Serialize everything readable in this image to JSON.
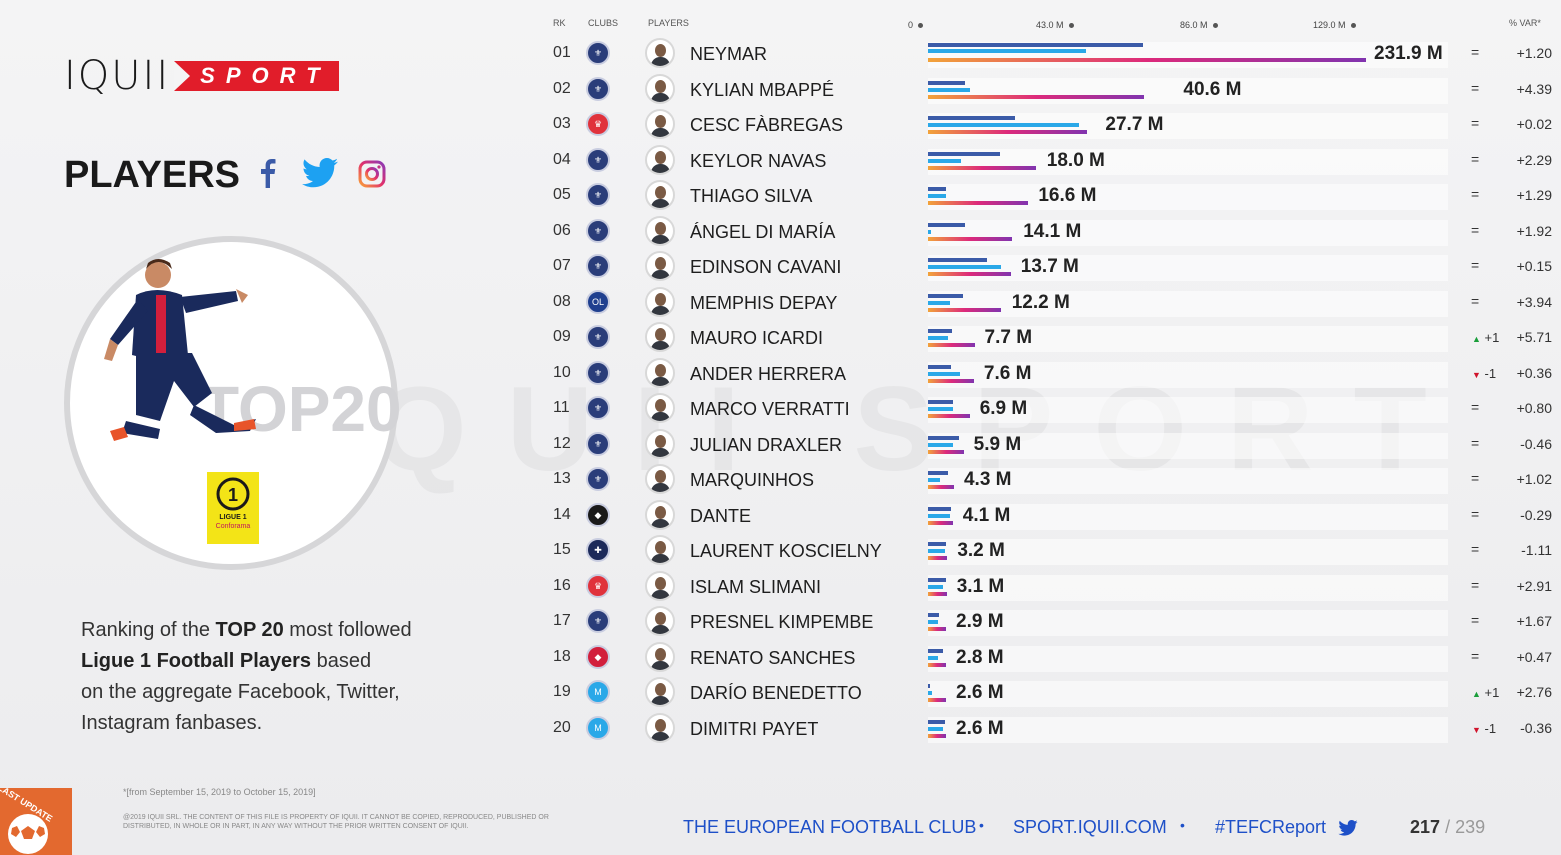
{
  "brand": {
    "logo_main": "IQUII",
    "logo_accent": "SPORT"
  },
  "title": "PLAYERS",
  "social_icons": [
    "facebook-icon",
    "twitter-icon",
    "instagram-icon"
  ],
  "hero": {
    "badge_text": "TOP20",
    "league_logo": "ligue-1-conforama-logo",
    "league_text_1": "LIGUE 1",
    "league_text_2": "Conforama"
  },
  "description": {
    "line1_pre": "Ranking of the ",
    "line1_bold": "TOP 20",
    "line1_post": " most followed",
    "line2_bold": "Ligue 1 Football Players",
    "line2_post": " based",
    "line3": "on the aggregate Facebook, Twitter,",
    "line4": "Instagram fanbases."
  },
  "footnote": "*[from September 15, 2019 to October 15, 2019]",
  "copyright": "@2019 IQUII SRL. THE CONTENT OF THIS FILE IS PROPERTY OF IQUII. IT CANNOT BE COPIED, REPRODUCED, PUBLISHED OR DISTRIBUTED, IN WHOLE OR IN PART, IN ANY WAY WITHOUT THE PRIOR WRITTEN CONSENT OF IQUII.",
  "corner_badge": "LAST UPDATE",
  "headers": {
    "rk": "RK",
    "clubs": "CLUBS",
    "players": "PLAYERS",
    "var": "% VAR*"
  },
  "scale_labels": [
    "0",
    "43.0 M",
    "86.0 M",
    "129.0 M"
  ],
  "colors": {
    "facebook": "#3b5ba8",
    "twitter": "#2aa8e8",
    "instagram_start": "#f2a33a",
    "instagram_end": "#8134af",
    "accent": "#e11d2a",
    "footer": "#1e50c8"
  },
  "chart_data": {
    "type": "bar",
    "title": "PLAYERS",
    "xlim": [
      0,
      231.9
    ],
    "x_ticks": [
      "0",
      "43.0 M",
      "86.0 M",
      "129.0 M"
    ],
    "series_names": [
      "Facebook",
      "Twitter",
      "Instagram"
    ],
    "rows": [
      {
        "rank": "01",
        "club": "psg-crest",
        "player": "NEYMAR",
        "total": 231.9,
        "total_label": "231.9 M",
        "fb": 0.49,
        "tw": 0.36,
        "ig": 1.0,
        "pos_change": "=",
        "var": "+1.20"
      },
      {
        "rank": "02",
        "club": "psg-crest",
        "player": "KYLIAN MBAPPÉ",
        "total": 40.6,
        "total_label": "40.6 M",
        "fb": 0.15,
        "tw": 0.17,
        "ig": 0.88,
        "pos_change": "=",
        "var": "+4.39"
      },
      {
        "rank": "03",
        "club": "monaco-crest",
        "player": "CESC FÀBREGAS",
        "total": 27.7,
        "total_label": "27.7 M",
        "fb": 0.52,
        "tw": 0.9,
        "ig": 0.95,
        "pos_change": "=",
        "var": "+0.02"
      },
      {
        "rank": "04",
        "club": "psg-crest",
        "player": "KEYLOR NAVAS",
        "total": 18.0,
        "total_label": "18.0 M",
        "fb": 0.66,
        "tw": 0.3,
        "ig": 0.99,
        "pos_change": "=",
        "var": "+2.29"
      },
      {
        "rank": "05",
        "club": "psg-crest",
        "player": "THIAGO SILVA",
        "total": 16.6,
        "total_label": "16.6 M",
        "fb": 0.18,
        "tw": 0.18,
        "ig": 1.0,
        "pos_change": "=",
        "var": "+1.29"
      },
      {
        "rank": "06",
        "club": "psg-crest",
        "player": "ÁNGEL DI MARÍA",
        "total": 14.1,
        "total_label": "14.1 M",
        "fb": 0.44,
        "tw": 0.04,
        "ig": 0.98,
        "pos_change": "=",
        "var": "+1.92"
      },
      {
        "rank": "07",
        "club": "psg-crest",
        "player": "EDINSON CAVANI",
        "total": 13.7,
        "total_label": "13.7 M",
        "fb": 0.71,
        "tw": 0.88,
        "ig": 1.0,
        "pos_change": "=",
        "var": "+0.15"
      },
      {
        "rank": "08",
        "club": "lyon-crest",
        "player": "MEMPHIS DEPAY",
        "total": 12.2,
        "total_label": "12.2 M",
        "fb": 0.47,
        "tw": 0.3,
        "ig": 0.99,
        "pos_change": "=",
        "var": "+3.94"
      },
      {
        "rank": "09",
        "club": "psg-crest",
        "player": "MAURO ICARDI",
        "total": 7.7,
        "total_label": "7.7 M",
        "fb": 0.51,
        "tw": 0.44,
        "ig": 1.0,
        "pos_change": "+1",
        "pos_dir": "up",
        "var": "+5.71"
      },
      {
        "rank": "10",
        "club": "psg-crest",
        "player": "ANDER HERRERA",
        "total": 7.6,
        "total_label": "7.6 M",
        "fb": 0.49,
        "tw": 0.69,
        "ig": 1.0,
        "pos_change": "-1",
        "pos_dir": "down",
        "var": "+0.36"
      },
      {
        "rank": "11",
        "club": "psg-crest",
        "player": "MARCO VERRATTI",
        "total": 6.9,
        "total_label": "6.9 M",
        "fb": 0.61,
        "tw": 0.61,
        "ig": 1.0,
        "pos_change": "=",
        "var": "+0.80"
      },
      {
        "rank": "12",
        "club": "psg-crest",
        "player": "JULIAN DRAXLER",
        "total": 5.9,
        "total_label": "5.9 M",
        "fb": 0.86,
        "tw": 0.71,
        "ig": 1.0,
        "pos_change": "=",
        "var": "-0.46"
      },
      {
        "rank": "13",
        "club": "psg-crest",
        "player": "MARQUINHOS",
        "total": 4.3,
        "total_label": "4.3 M",
        "fb": 0.76,
        "tw": 0.47,
        "ig": 1.0,
        "pos_change": "=",
        "var": "+1.02"
      },
      {
        "rank": "14",
        "club": "nice-crest",
        "player": "DANTE",
        "total": 4.1,
        "total_label": "4.1 M",
        "fb": 0.94,
        "tw": 0.88,
        "ig": 1.0,
        "pos_change": "=",
        "var": "-0.29"
      },
      {
        "rank": "15",
        "club": "bordeaux-crest",
        "player": "LAURENT KOSCIELNY",
        "total": 3.2,
        "total_label": "3.2 M",
        "fb": 0.93,
        "tw": 0.86,
        "ig": 1.0,
        "pos_change": "=",
        "var": "-1.11"
      },
      {
        "rank": "16",
        "club": "monaco-crest",
        "player": "ISLAM SLIMANI",
        "total": 3.1,
        "total_label": "3.1 M",
        "fb": 0.94,
        "tw": 0.81,
        "ig": 1.0,
        "pos_change": "=",
        "var": "+2.91"
      },
      {
        "rank": "17",
        "club": "psg-crest",
        "player": "PRESNEL KIMPEMBE",
        "total": 2.9,
        "total_label": "2.9 M",
        "fb": 0.62,
        "tw": 0.54,
        "ig": 1.0,
        "pos_change": "=",
        "var": "+1.67"
      },
      {
        "rank": "18",
        "club": "lille-crest",
        "player": "RENATO SANCHES",
        "total": 2.8,
        "total_label": "2.8 M",
        "fb": 0.81,
        "tw": 0.56,
        "ig": 1.0,
        "pos_change": "=",
        "var": "+0.47"
      },
      {
        "rank": "19",
        "club": "marseille-crest",
        "player": "DARÍO BENEDETTO",
        "total": 2.6,
        "total_label": "2.6 M",
        "fb": 0.06,
        "tw": 0.23,
        "ig": 1.0,
        "pos_change": "+1",
        "pos_dir": "up",
        "var": "+2.76"
      },
      {
        "rank": "20",
        "club": "marseille-crest",
        "player": "DIMITRI PAYET",
        "total": 2.6,
        "total_label": "2.6 M",
        "fb": 0.92,
        "tw": 0.81,
        "ig": 1.0,
        "pos_change": "-1",
        "pos_dir": "down",
        "var": "-0.36"
      }
    ]
  },
  "footer": {
    "club": "THE EUROPEAN FOOTBALL CLUB",
    "site": "SPORT.IQUII.COM",
    "hashtag": "#TEFCReport",
    "page": "217",
    "page_total": "/ 239"
  }
}
